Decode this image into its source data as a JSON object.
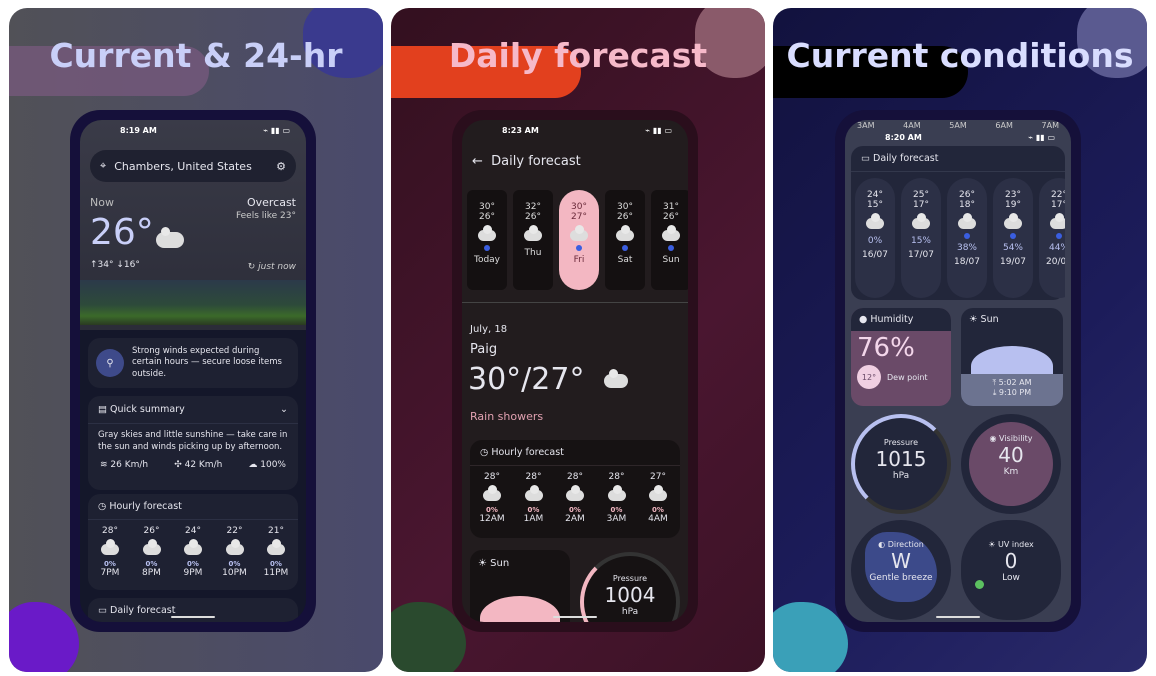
{
  "panels": [
    {
      "title": "Current & 24-hr",
      "accent": "#c9cff8",
      "status": {
        "time": "8:19 AM",
        "battery": "100"
      },
      "location": "Chambers, United States",
      "now_label": "Now",
      "temp": "26°",
      "condition": "Overcast",
      "feels_like": "Feels like 23°",
      "hi_lo": "↑34° ↓16°",
      "updated": "just now",
      "alert": "Strong winds expected during certain hours — secure loose items outside.",
      "summary": {
        "title": "Quick summary",
        "text": "Gray skies and little sunshine — take care in the sun and winds picking up by afternoon.",
        "wind": "26 Km/h",
        "gust": "42 Km/h",
        "cloud": "100%"
      },
      "hourly": {
        "title": "Hourly forecast",
        "items": [
          {
            "t": "28°",
            "p": "0%",
            "h": "7PM"
          },
          {
            "t": "26°",
            "p": "0%",
            "h": "8PM"
          },
          {
            "t": "24°",
            "p": "0%",
            "h": "9PM"
          },
          {
            "t": "22°",
            "p": "0%",
            "h": "10PM"
          },
          {
            "t": "21°",
            "p": "0%",
            "h": "11PM"
          }
        ]
      },
      "daily_label": "Daily forecast"
    },
    {
      "title": "Daily forecast",
      "accent": "#f6b9c9",
      "status": {
        "time": "8:23 AM"
      },
      "header": "Daily forecast",
      "days": [
        {
          "hi": "30°",
          "lo": "26°",
          "d": "Today",
          "icon": "thunder-rain"
        },
        {
          "hi": "32°",
          "lo": "26°",
          "d": "Thu",
          "icon": "cloud"
        },
        {
          "hi": "30°",
          "lo": "27°",
          "d": "Fri",
          "icon": "rain-showers",
          "selected": true
        },
        {
          "hi": "30°",
          "lo": "26°",
          "d": "Sat",
          "icon": "thunder-rain"
        },
        {
          "hi": "31°",
          "lo": "26°",
          "d": "Sun",
          "icon": "rain-showers"
        }
      ],
      "date": "July, 18",
      "place": "Paig",
      "temps": "30°/27°",
      "condition": "Rain showers",
      "hourly": {
        "title": "Hourly forecast",
        "items": [
          {
            "t": "28°",
            "p": "0%",
            "h": "12AM"
          },
          {
            "t": "28°",
            "p": "0%",
            "h": "1AM"
          },
          {
            "t": "28°",
            "p": "0%",
            "h": "2AM"
          },
          {
            "t": "28°",
            "p": "0%",
            "h": "3AM"
          },
          {
            "t": "27°",
            "p": "0%",
            "h": "4AM"
          }
        ]
      },
      "sun_label": "Sun",
      "pressure": {
        "label": "Pressure",
        "value": "1004",
        "unit": "hPa"
      }
    },
    {
      "title": "Current conditions",
      "accent": "#d9ddff",
      "status": {
        "time": "8:20 AM"
      },
      "hour_strip": [
        "3AM",
        "4AM",
        "5AM",
        "6AM",
        "7AM"
      ],
      "daily": {
        "title": "Daily forecast",
        "items": [
          {
            "hi": "24°",
            "lo": "15°",
            "p": "0%",
            "d": "16/07",
            "icon": "cloud"
          },
          {
            "hi": "25°",
            "lo": "17°",
            "p": "15%",
            "d": "17/07",
            "icon": "cloud"
          },
          {
            "hi": "26°",
            "lo": "18°",
            "p": "38%",
            "d": "18/07",
            "icon": "rain-showers"
          },
          {
            "hi": "23°",
            "lo": "19°",
            "p": "54%",
            "d": "19/07",
            "icon": "thunder-rain"
          },
          {
            "hi": "22°",
            "lo": "17°",
            "p": "44%",
            "d": "20/07",
            "icon": "rain-showers"
          }
        ]
      },
      "humidity": {
        "label": "Humidity",
        "value": "76%",
        "dew": "12°",
        "dew_label": "Dew point"
      },
      "sun": {
        "label": "Sun",
        "rise": "5:02 AM",
        "set": "9:10 PM"
      },
      "pressure": {
        "label": "Pressure",
        "value": "1015",
        "unit": "hPa"
      },
      "visibility": {
        "label": "Visibility",
        "value": "40",
        "unit": "Km"
      },
      "direction": {
        "label": "Direction",
        "value": "W",
        "desc": "Gentle breeze"
      },
      "uv": {
        "label": "UV index",
        "value": "0",
        "desc": "Low"
      }
    }
  ]
}
